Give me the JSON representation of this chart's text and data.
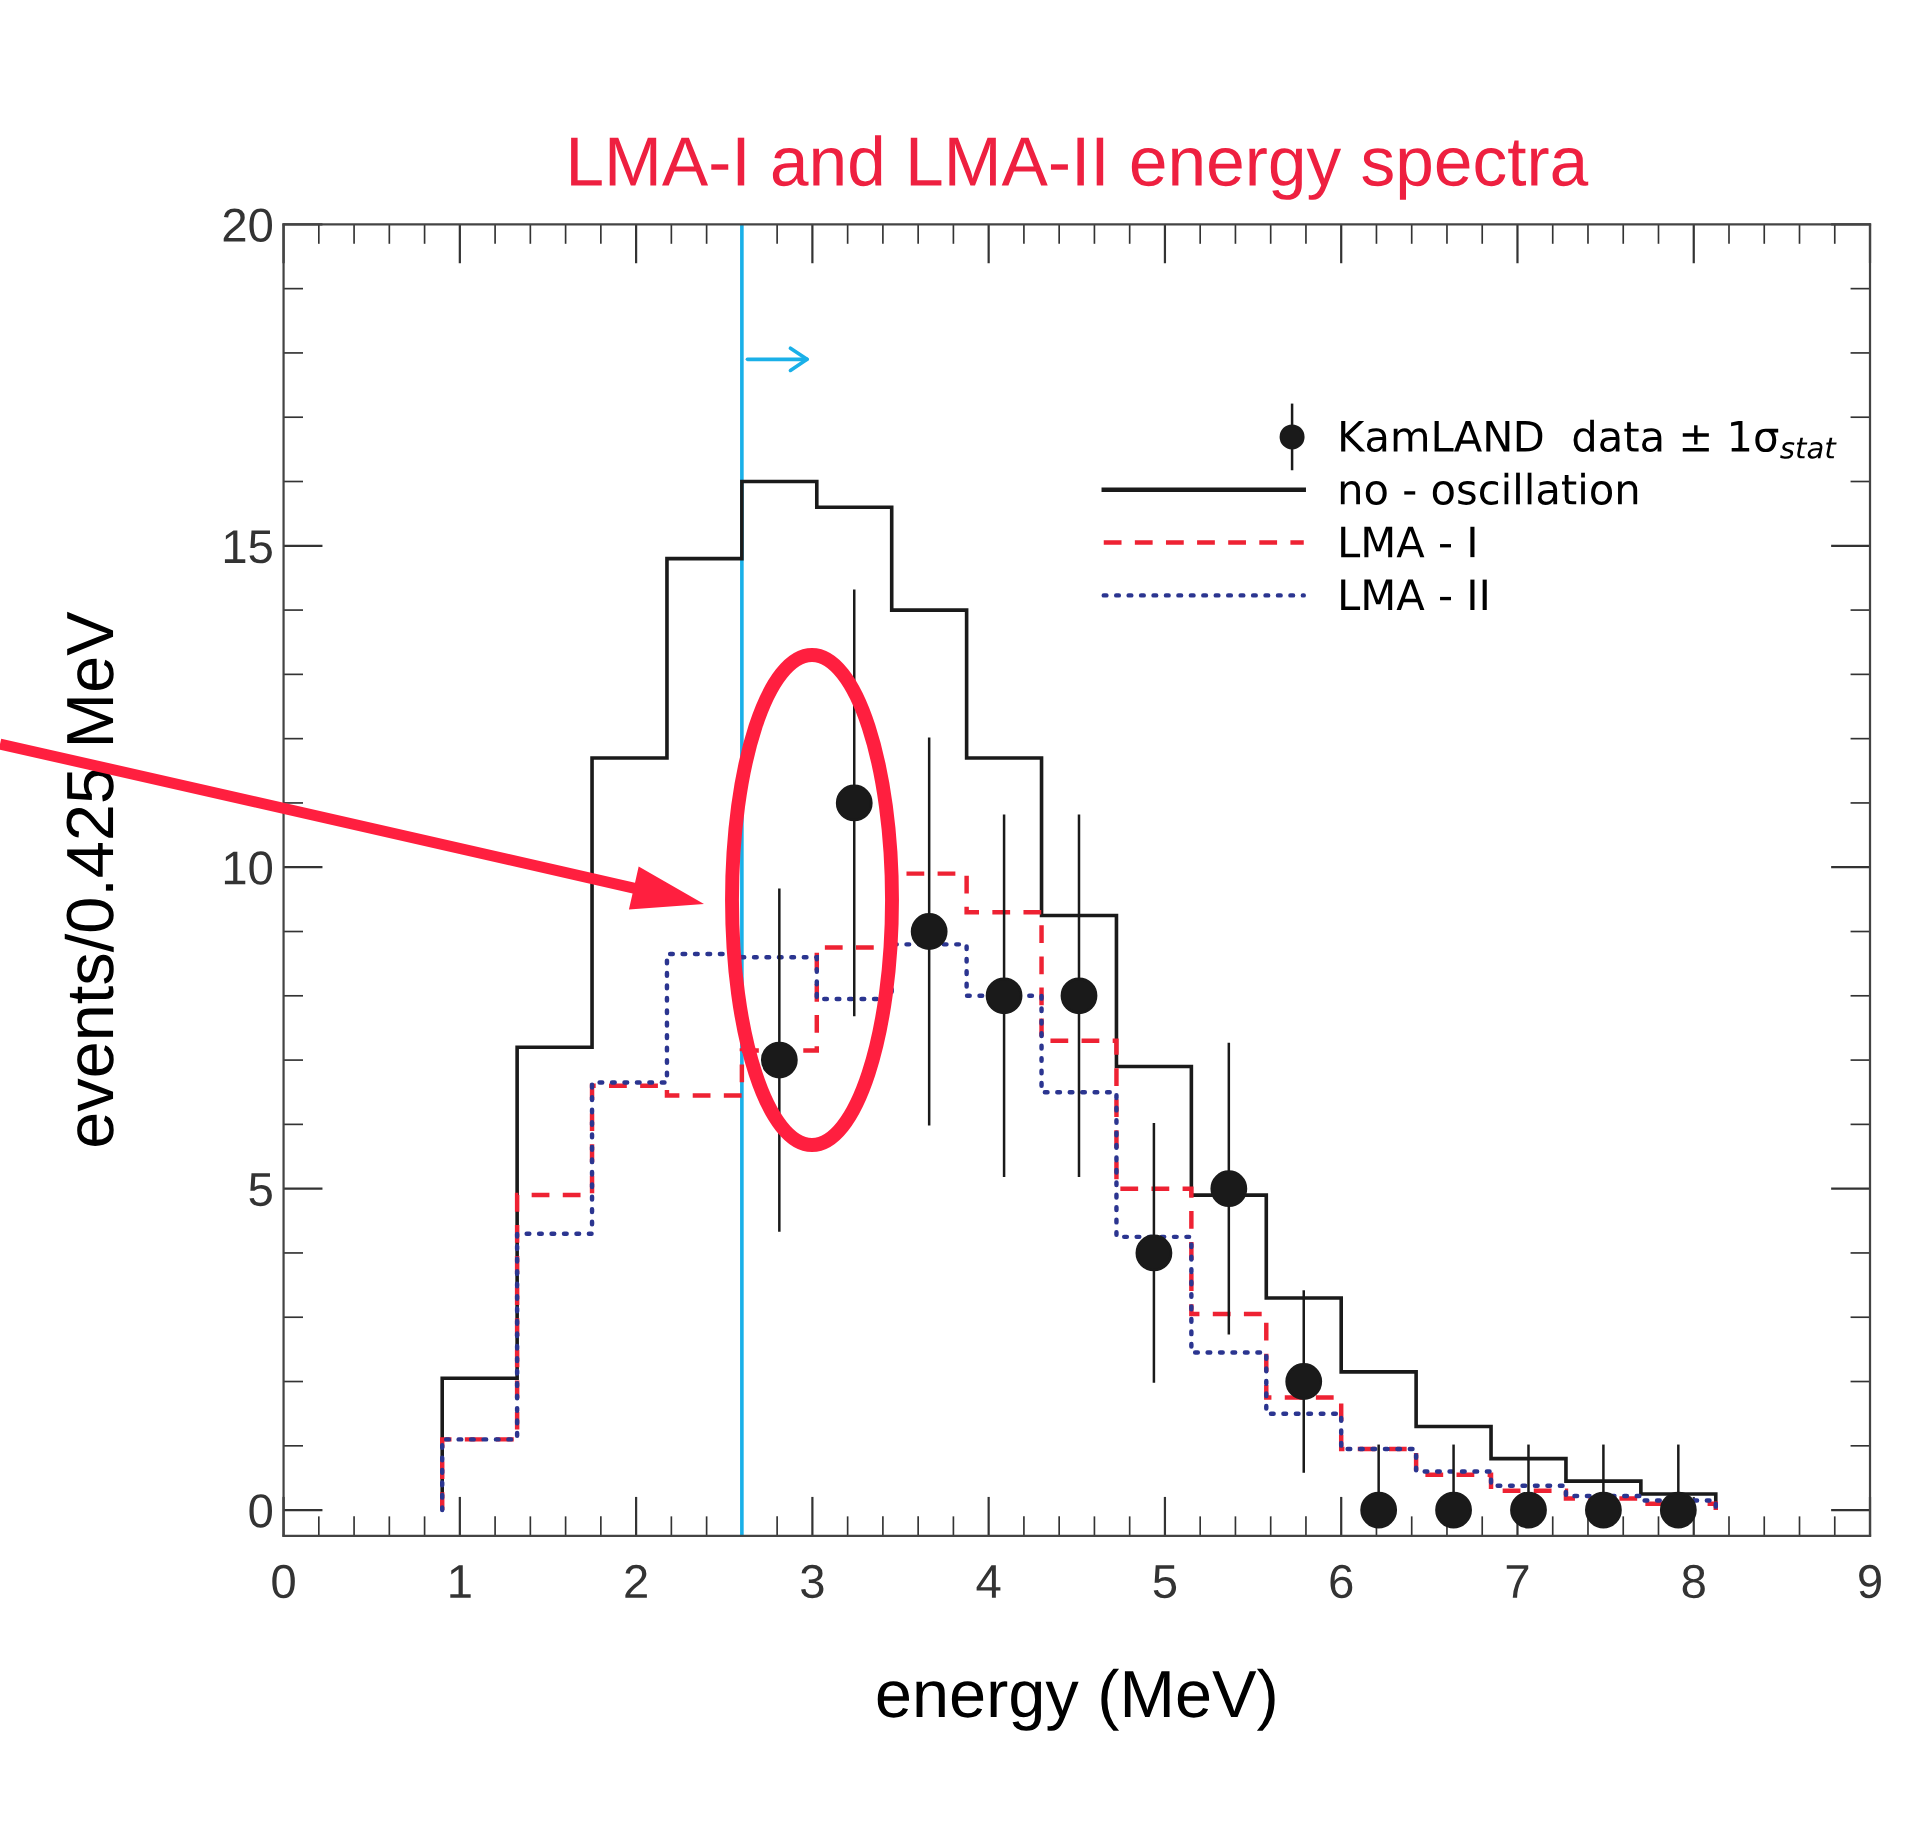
{
  "chart_data": {
    "type": "histogram",
    "title": "LMA-I and LMA-II energy spectra",
    "xlabel": "energy (MeV)",
    "ylabel": "events/0.425 MeV",
    "bins": [
      0.9,
      1.325,
      1.75,
      2.175,
      2.6,
      3.025,
      3.45,
      3.875,
      4.3,
      4.725,
      5.15,
      5.575,
      6.0,
      6.425,
      6.85,
      7.275,
      7.7,
      8.125
    ],
    "series": [
      {
        "type": "scatter",
        "name": "KamLAND  data ± 1σ$_{stat}$",
        "color": "#1a1a1a",
        "marker": "circle",
        "x": [
          2.8125,
          3.2375,
          3.6625,
          4.0875,
          4.5125,
          4.9375,
          5.3625,
          5.7875,
          6.2125,
          6.6375,
          7.0625,
          7.4875,
          7.9125
        ],
        "values": [
          7,
          11,
          9,
          8,
          8,
          4,
          5,
          2,
          0,
          0,
          0,
          0,
          0
        ],
        "errors": [
          [
            4.35,
            9.65
          ],
          [
            7.7,
            14.3
          ],
          [
            6.0,
            12.0
          ],
          [
            5.2,
            10.8
          ],
          [
            5.2,
            10.8
          ],
          [
            2.0,
            6.0
          ],
          [
            2.75,
            7.25
          ],
          [
            0.6,
            3.4
          ],
          [
            0,
            1
          ],
          [
            0,
            1
          ],
          [
            0,
            1
          ],
          [
            0,
            1
          ],
          [
            0,
            1
          ]
        ]
      },
      {
        "type": "histogram",
        "name": "no - oscillation",
        "color": "#1a1a1a",
        "line_style": "solid",
        "values": [
          2.05,
          7.2,
          11.7,
          14.8,
          16.0,
          15.6,
          14.0,
          11.7,
          9.25,
          6.9,
          4.9,
          3.3,
          2.15,
          1.3,
          0.8,
          0.45,
          0.25
        ]
      },
      {
        "type": "histogram",
        "name": "LMA - I",
        "color": "#ee2233",
        "line_style": "dashed",
        "values": [
          1.1,
          4.9,
          6.6,
          6.45,
          7.15,
          8.75,
          9.9,
          9.3,
          7.3,
          5.0,
          3.05,
          1.75,
          0.95,
          0.55,
          0.3,
          0.18,
          0.1
        ]
      },
      {
        "type": "histogram",
        "name": "LMA - II",
        "color": "#2b3590",
        "line_style": "dotted",
        "values": [
          1.1,
          4.3,
          6.65,
          8.65,
          8.6,
          7.95,
          8.8,
          8.0,
          6.5,
          4.25,
          2.45,
          1.5,
          0.95,
          0.6,
          0.38,
          0.22,
          0.15
        ]
      }
    ],
    "ref_lines": [
      {
        "axis": "x",
        "value": 2.6,
        "color": "#1ab0e8"
      }
    ],
    "xlim": [
      0,
      9
    ],
    "ylim": [
      -0.4,
      20
    ],
    "xticks": [
      0,
      1,
      2,
      3,
      4,
      5,
      6,
      7,
      8,
      9
    ],
    "yticks": [
      0,
      5,
      10,
      15,
      20
    ],
    "legend": "top right",
    "grid": false
  }
}
